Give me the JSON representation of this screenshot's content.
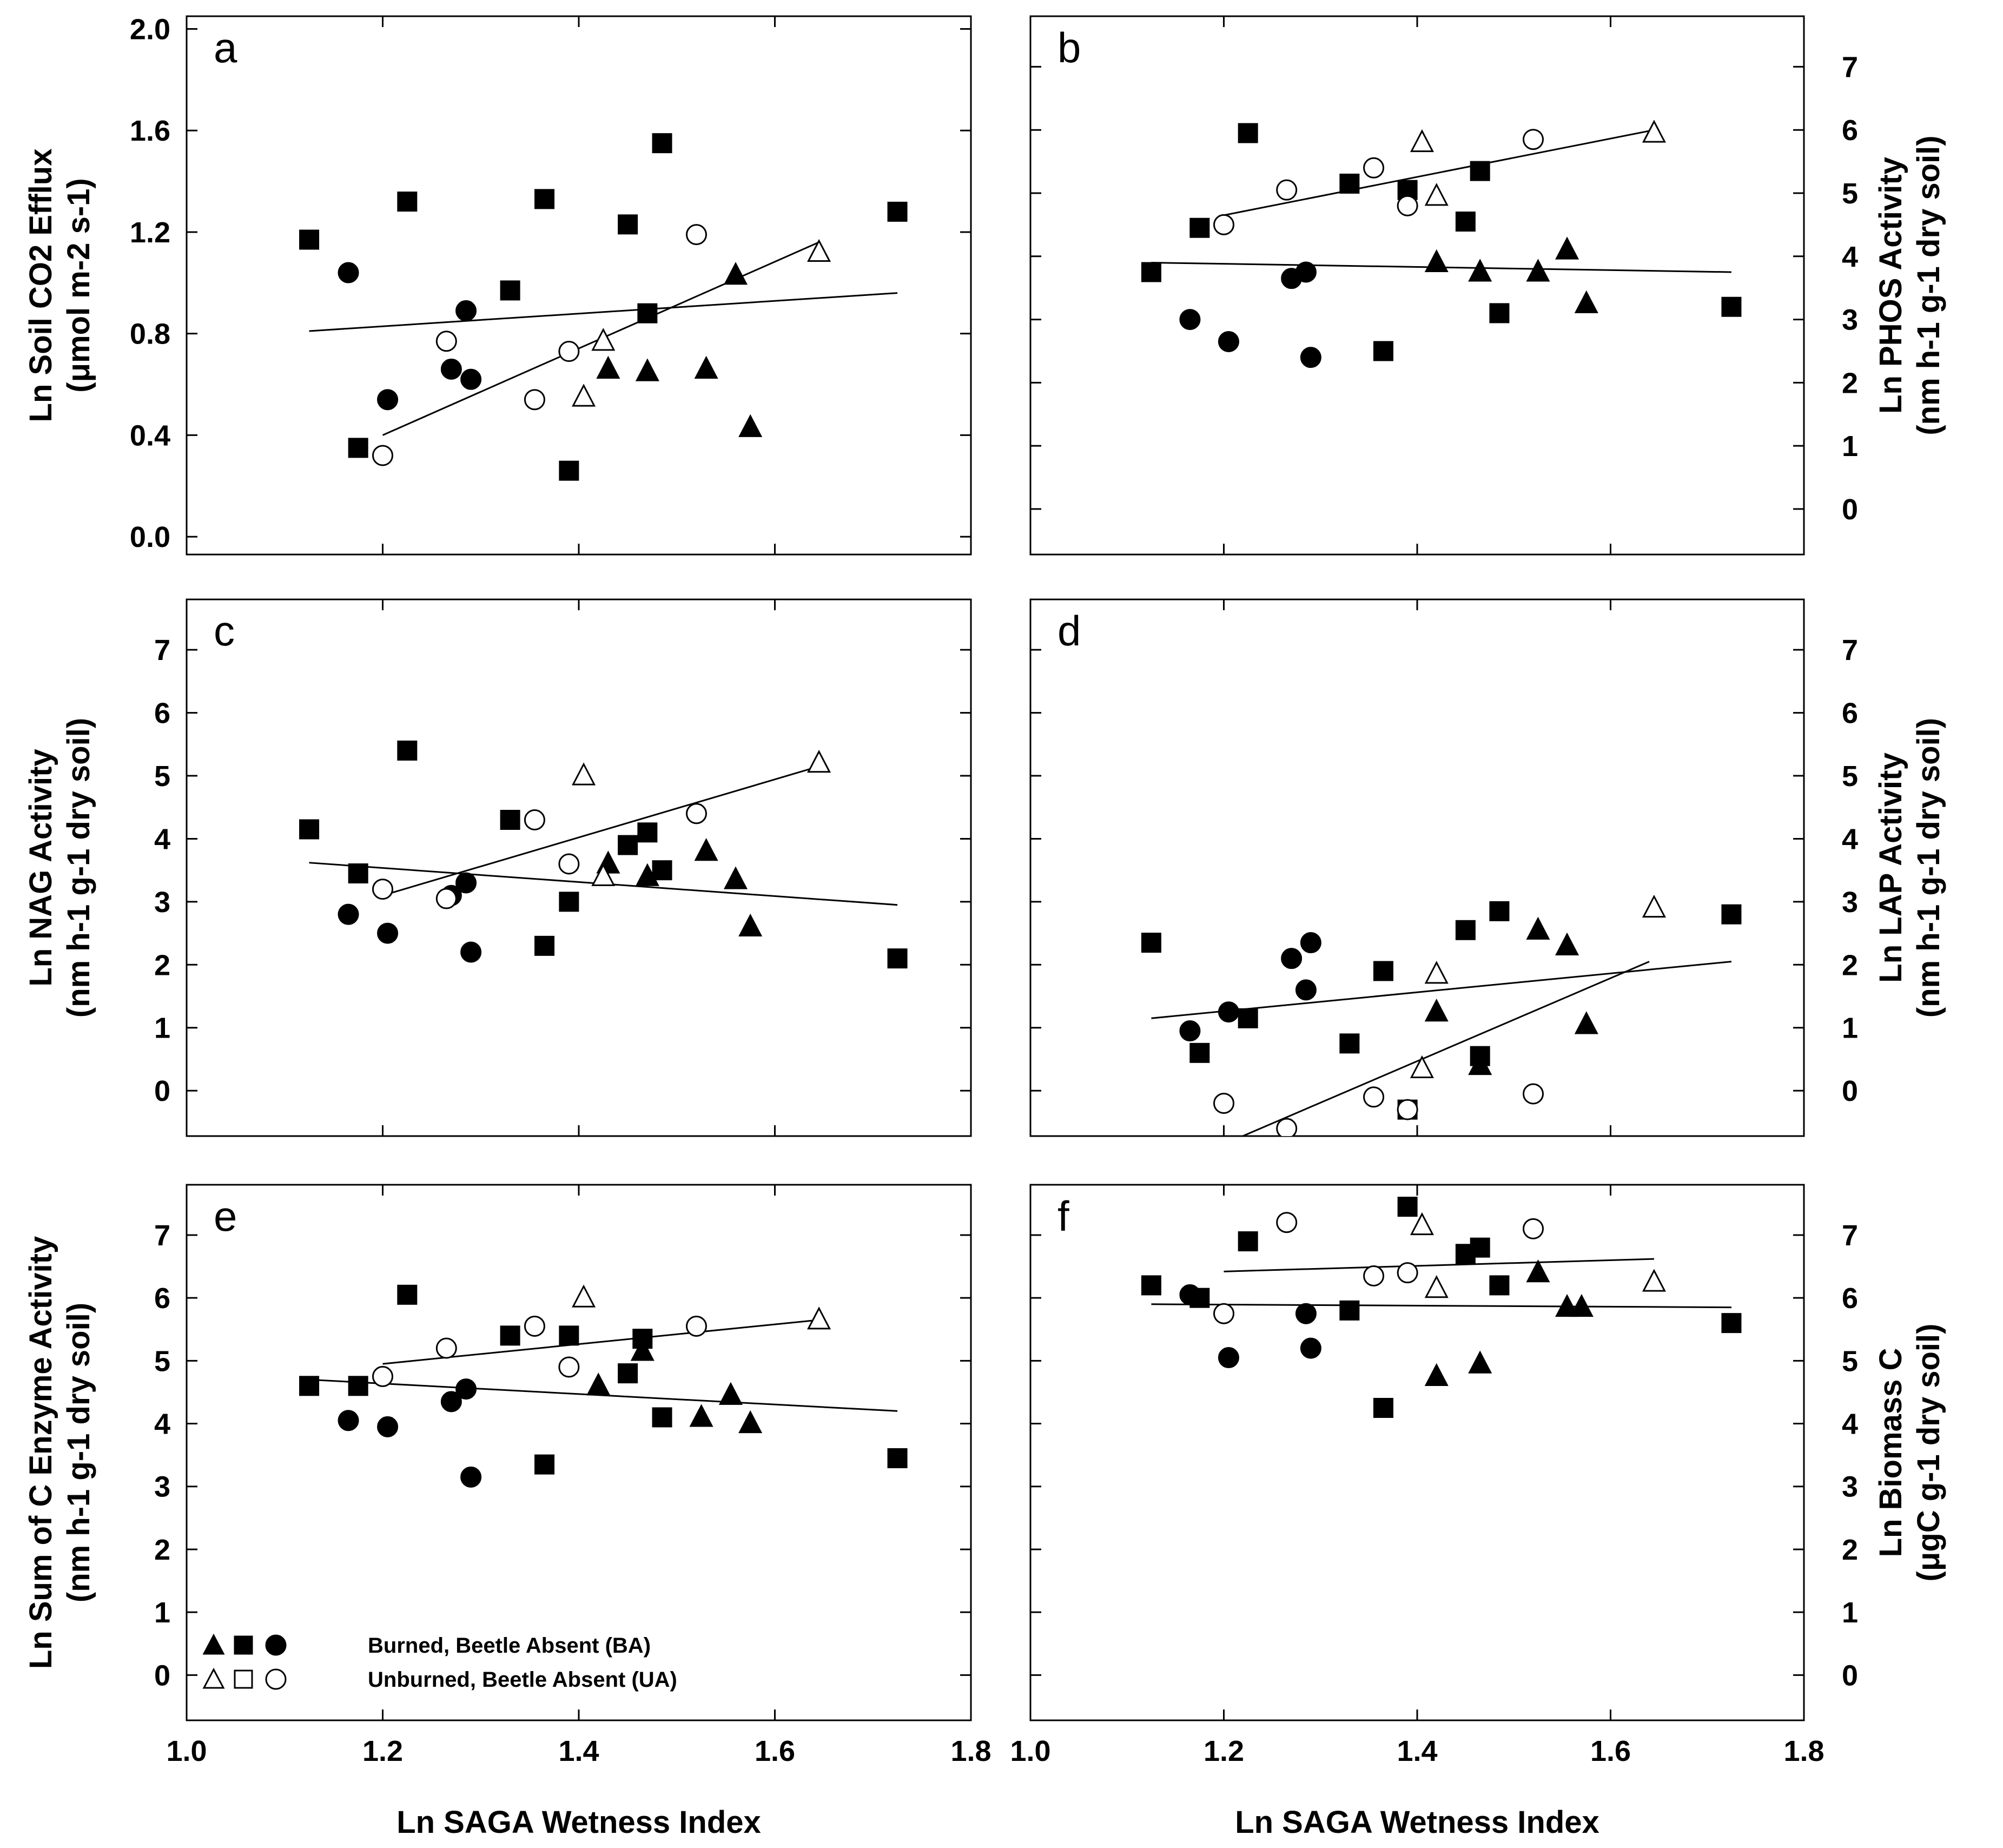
{
  "chart_data": [
    {
      "panel": "a",
      "type": "scatter",
      "ylim": [
        -0.07,
        2.05
      ],
      "yticks": [
        "0.0",
        "0.4",
        "0.8",
        "1.2",
        "1.6",
        "2.0"
      ],
      "ytick_values": [
        0.0,
        0.4,
        0.8,
        1.2,
        1.6,
        2.0
      ],
      "ylabel_lines": [
        "Ln Soil CO2 Efflux",
        "(μmol m-2 s-1)"
      ],
      "series": [
        {
          "name": "BA triangle",
          "marker": "triangle",
          "filled": true,
          "x": [
            1.43,
            1.47,
            1.53,
            1.56,
            1.575
          ],
          "y": [
            0.66,
            0.65,
            0.66,
            1.03,
            0.43
          ]
        },
        {
          "name": "BA square",
          "marker": "square",
          "filled": true,
          "x": [
            1.125,
            1.175,
            1.225,
            1.33,
            1.365,
            1.39,
            1.45,
            1.47,
            1.485,
            1.725
          ],
          "y": [
            1.17,
            0.35,
            1.32,
            0.97,
            1.33,
            0.26,
            1.23,
            0.88,
            1.55,
            1.28
          ]
        },
        {
          "name": "BA circle",
          "marker": "circle",
          "filled": true,
          "x": [
            1.165,
            1.205,
            1.27,
            1.285,
            1.29
          ],
          "y": [
            1.04,
            0.54,
            0.66,
            0.89,
            0.62
          ]
        },
        {
          "name": "UA triangle",
          "marker": "triangle",
          "filled": false,
          "x": [
            1.405,
            1.425,
            1.645
          ],
          "y": [
            0.55,
            0.77,
            1.12
          ]
        },
        {
          "name": "UA circle",
          "marker": "circle",
          "filled": false,
          "x": [
            1.2,
            1.265,
            1.355,
            1.39,
            1.52
          ],
          "y": [
            0.32,
            0.77,
            0.54,
            0.73,
            1.19
          ]
        }
      ],
      "fit_lines": [
        {
          "name": "BA fit",
          "x": [
            1.125,
            1.725
          ],
          "y": [
            0.81,
            0.96
          ]
        },
        {
          "name": "UA fit",
          "x": [
            1.2,
            1.645
          ],
          "y": [
            0.4,
            1.16
          ]
        }
      ]
    },
    {
      "panel": "b",
      "type": "scatter",
      "ylim": [
        -0.72,
        7.8
      ],
      "yticks": [
        "0",
        "1",
        "2",
        "3",
        "4",
        "5",
        "6",
        "7"
      ],
      "ytick_values": [
        0,
        1,
        2,
        3,
        4,
        5,
        6,
        7
      ],
      "ylabel_lines": [
        "Ln PHOS Activity",
        "(nm h-1 g-1 dry soil)"
      ],
      "series": [
        {
          "name": "BA triangle",
          "marker": "triangle",
          "filled": true,
          "x": [
            1.42,
            1.465,
            1.525,
            1.555,
            1.575
          ],
          "y": [
            3.9,
            3.75,
            3.75,
            4.1,
            3.25
          ]
        },
        {
          "name": "BA square",
          "marker": "square",
          "filled": true,
          "x": [
            1.125,
            1.175,
            1.225,
            1.33,
            1.365,
            1.39,
            1.45,
            1.465,
            1.485,
            1.725
          ],
          "y": [
            3.75,
            4.45,
            5.95,
            5.15,
            2.5,
            5.05,
            4.55,
            5.35,
            3.1,
            3.2
          ]
        },
        {
          "name": "BA circle",
          "marker": "circle",
          "filled": true,
          "x": [
            1.165,
            1.205,
            1.27,
            1.285,
            1.29
          ],
          "y": [
            3.0,
            2.65,
            3.65,
            3.75,
            2.4
          ]
        },
        {
          "name": "UA triangle",
          "marker": "triangle",
          "filled": false,
          "x": [
            1.405,
            1.42,
            1.645
          ],
          "y": [
            5.8,
            4.95,
            5.95
          ]
        },
        {
          "name": "UA circle",
          "marker": "circle",
          "filled": false,
          "x": [
            1.2,
            1.265,
            1.355,
            1.39,
            1.52
          ],
          "y": [
            4.5,
            5.05,
            5.4,
            4.8,
            5.85
          ]
        }
      ],
      "fit_lines": [
        {
          "name": "BA fit",
          "x": [
            1.125,
            1.725
          ],
          "y": [
            3.9,
            3.75
          ]
        },
        {
          "name": "UA fit",
          "x": [
            1.2,
            1.645
          ],
          "y": [
            4.65,
            6.0
          ]
        }
      ]
    },
    {
      "panel": "c",
      "type": "scatter",
      "ylim": [
        -0.72,
        7.8
      ],
      "yticks": [
        "0",
        "1",
        "2",
        "3",
        "4",
        "5",
        "6",
        "7"
      ],
      "ytick_values": [
        0,
        1,
        2,
        3,
        4,
        5,
        6,
        7
      ],
      "ylabel_lines": [
        "Ln NAG Activity",
        "(nm h-1 g-1 dry soil)"
      ],
      "series": [
        {
          "name": "BA triangle",
          "marker": "triangle",
          "filled": true,
          "x": [
            1.43,
            1.47,
            1.53,
            1.56,
            1.575
          ],
          "y": [
            3.6,
            3.4,
            3.8,
            3.35,
            2.6
          ]
        },
        {
          "name": "BA square",
          "marker": "square",
          "filled": true,
          "x": [
            1.125,
            1.175,
            1.225,
            1.33,
            1.365,
            1.39,
            1.45,
            1.47,
            1.485,
            1.725
          ],
          "y": [
            4.15,
            3.45,
            5.4,
            4.3,
            2.3,
            3.0,
            3.9,
            4.1,
            3.5,
            2.1
          ]
        },
        {
          "name": "BA circle",
          "marker": "circle",
          "filled": true,
          "x": [
            1.165,
            1.205,
            1.27,
            1.285,
            1.29
          ],
          "y": [
            2.8,
            2.5,
            3.1,
            3.3,
            2.2
          ]
        },
        {
          "name": "UA triangle",
          "marker": "triangle",
          "filled": false,
          "x": [
            1.405,
            1.425,
            1.645
          ],
          "y": [
            5.0,
            3.4,
            5.2
          ]
        },
        {
          "name": "UA circle",
          "marker": "circle",
          "filled": false,
          "x": [
            1.2,
            1.265,
            1.355,
            1.39,
            1.52
          ],
          "y": [
            3.2,
            3.05,
            4.3,
            3.6,
            4.4
          ]
        }
      ],
      "fit_lines": [
        {
          "name": "BA fit",
          "x": [
            1.125,
            1.725
          ],
          "y": [
            3.62,
            2.95
          ]
        },
        {
          "name": "UA fit",
          "x": [
            1.2,
            1.645
          ],
          "y": [
            3.1,
            5.15
          ]
        }
      ]
    },
    {
      "panel": "d",
      "type": "scatter",
      "ylim": [
        -0.72,
        7.8
      ],
      "yticks": [
        "0",
        "1",
        "2",
        "3",
        "4",
        "5",
        "6",
        "7"
      ],
      "ytick_values": [
        0,
        1,
        2,
        3,
        4,
        5,
        6,
        7
      ],
      "ylabel_lines": [
        "Ln LAP Activity",
        "(nm h-1 g-1 dry soil)"
      ],
      "series": [
        {
          "name": "BA triangle",
          "marker": "triangle",
          "filled": true,
          "x": [
            1.42,
            1.465,
            1.525,
            1.555,
            1.575
          ],
          "y": [
            1.25,
            0.4,
            2.55,
            2.3,
            1.05
          ]
        },
        {
          "name": "BA square",
          "marker": "square",
          "filled": true,
          "x": [
            1.125,
            1.175,
            1.225,
            1.33,
            1.365,
            1.39,
            1.45,
            1.465,
            1.485,
            1.725
          ],
          "y": [
            2.35,
            0.6,
            1.15,
            0.75,
            1.9,
            -0.3,
            2.55,
            0.55,
            2.85,
            2.8
          ]
        },
        {
          "name": "BA circle",
          "marker": "circle",
          "filled": true,
          "x": [
            1.165,
            1.205,
            1.27,
            1.285,
            1.29
          ],
          "y": [
            0.95,
            1.25,
            2.1,
            1.6,
            2.35
          ]
        },
        {
          "name": "UA triangle",
          "marker": "triangle",
          "filled": false,
          "x": [
            1.405,
            1.42,
            1.645
          ],
          "y": [
            0.35,
            1.85,
            2.9
          ]
        },
        {
          "name": "UA circle",
          "marker": "circle",
          "filled": false,
          "x": [
            1.2,
            1.265,
            1.355,
            1.39,
            1.52
          ],
          "y": [
            -0.2,
            -0.6,
            -0.1,
            -0.3,
            -0.05
          ]
        },
        {
          "name": "UA circle clipped",
          "marker": "circle",
          "filled": false,
          "x": [],
          "y": []
        }
      ],
      "fit_lines": [
        {
          "name": "BA fit",
          "x": [
            1.125,
            1.725
          ],
          "y": [
            1.15,
            2.05
          ]
        },
        {
          "name": "UA fit",
          "x": [
            1.215,
            1.64
          ],
          "y": [
            -0.75,
            2.05
          ]
        }
      ]
    },
    {
      "panel": "e",
      "type": "scatter",
      "ylim": [
        -0.72,
        7.8
      ],
      "yticks": [
        "0",
        "1",
        "2",
        "3",
        "4",
        "5",
        "6",
        "7"
      ],
      "ytick_values": [
        0,
        1,
        2,
        3,
        4,
        5,
        6,
        7
      ],
      "ylabel_lines": [
        "Ln Sum of C Enzyme Activity",
        "(nm h-1 g-1 dry soil)"
      ],
      "series": [
        {
          "name": "BA triangle",
          "marker": "triangle",
          "filled": true,
          "x": [
            1.42,
            1.465,
            1.525,
            1.555,
            1.575
          ],
          "y": [
            4.6,
            5.15,
            4.1,
            4.45,
            4.0
          ]
        },
        {
          "name": "BA square",
          "marker": "square",
          "filled": true,
          "x": [
            1.125,
            1.175,
            1.225,
            1.33,
            1.365,
            1.39,
            1.45,
            1.465,
            1.485,
            1.725
          ],
          "y": [
            4.6,
            4.6,
            6.05,
            5.4,
            3.35,
            5.4,
            4.8,
            5.35,
            4.1,
            3.45
          ]
        },
        {
          "name": "BA circle",
          "marker": "circle",
          "filled": true,
          "x": [
            1.165,
            1.205,
            1.27,
            1.285,
            1.29
          ],
          "y": [
            4.05,
            3.95,
            4.35,
            4.55,
            3.15
          ]
        },
        {
          "name": "UA triangle",
          "marker": "triangle",
          "filled": false,
          "x": [
            1.405,
            1.645
          ],
          "y": [
            6.0,
            5.65
          ]
        },
        {
          "name": "UA circle",
          "marker": "circle",
          "filled": false,
          "x": [
            1.2,
            1.265,
            1.355,
            1.39,
            1.52
          ],
          "y": [
            4.75,
            5.2,
            5.55,
            4.9,
            5.55
          ]
        }
      ],
      "fit_lines": [
        {
          "name": "BA fit",
          "x": [
            1.125,
            1.725
          ],
          "y": [
            4.7,
            4.2
          ]
        },
        {
          "name": "UA fit",
          "x": [
            1.2,
            1.645
          ],
          "y": [
            4.95,
            5.65
          ]
        }
      ],
      "legend": [
        {
          "label": "Burned, Beetle Absent (BA)",
          "filled": true
        },
        {
          "label": "Unburned, Beetle Absent (UA)",
          "filled": false
        }
      ]
    },
    {
      "panel": "f",
      "type": "scatter",
      "ylim": [
        -0.72,
        7.8
      ],
      "yticks": [
        "0",
        "1",
        "2",
        "3",
        "4",
        "5",
        "6",
        "7"
      ],
      "ytick_values": [
        0,
        1,
        2,
        3,
        4,
        5,
        6,
        7
      ],
      "ylabel_lines": [
        "Ln Biomass C",
        "(μgC g-1 dry soil)"
      ],
      "series": [
        {
          "name": "BA triangle",
          "marker": "triangle",
          "filled": true,
          "x": [
            1.42,
            1.465,
            1.525,
            1.555,
            1.57
          ],
          "y": [
            4.75,
            4.95,
            6.4,
            5.85,
            5.85
          ]
        },
        {
          "name": "BA square",
          "marker": "square",
          "filled": true,
          "x": [
            1.125,
            1.175,
            1.225,
            1.33,
            1.365,
            1.39,
            1.45,
            1.465,
            1.485,
            1.725
          ],
          "y": [
            6.2,
            6.0,
            6.9,
            5.8,
            4.25,
            7.45,
            6.7,
            6.8,
            6.2,
            5.6
          ]
        },
        {
          "name": "BA circle",
          "marker": "circle",
          "filled": true,
          "x": [
            1.165,
            1.205,
            1.285,
            1.29
          ],
          "y": [
            6.05,
            5.05,
            5.75,
            5.2
          ]
        },
        {
          "name": "UA triangle",
          "marker": "triangle",
          "filled": false,
          "x": [
            1.405,
            1.42,
            1.645
          ],
          "y": [
            7.15,
            6.15,
            6.25
          ]
        },
        {
          "name": "UA circle",
          "marker": "circle",
          "filled": false,
          "x": [
            1.2,
            1.265,
            1.355,
            1.39,
            1.52
          ],
          "y": [
            5.75,
            7.2,
            6.35,
            6.4,
            7.1
          ]
        }
      ],
      "fit_lines": [
        {
          "name": "BA fit",
          "x": [
            1.125,
            1.725
          ],
          "y": [
            5.9,
            5.85
          ]
        },
        {
          "name": "UA fit",
          "x": [
            1.2,
            1.645
          ],
          "y": [
            6.42,
            6.62
          ]
        }
      ]
    }
  ],
  "shared_x": {
    "xlabel": "Ln SAGA Wetness Index",
    "xlim": [
      1.0,
      1.8
    ],
    "xticks": [
      "1.0",
      "1.2",
      "1.4",
      "1.6",
      "1.8"
    ],
    "xtick_values": [
      1.0,
      1.2,
      1.4,
      1.6,
      1.8
    ]
  },
  "legend_markers": {
    "filled": "▲ ■ ●",
    "open": "△ □ ○"
  }
}
